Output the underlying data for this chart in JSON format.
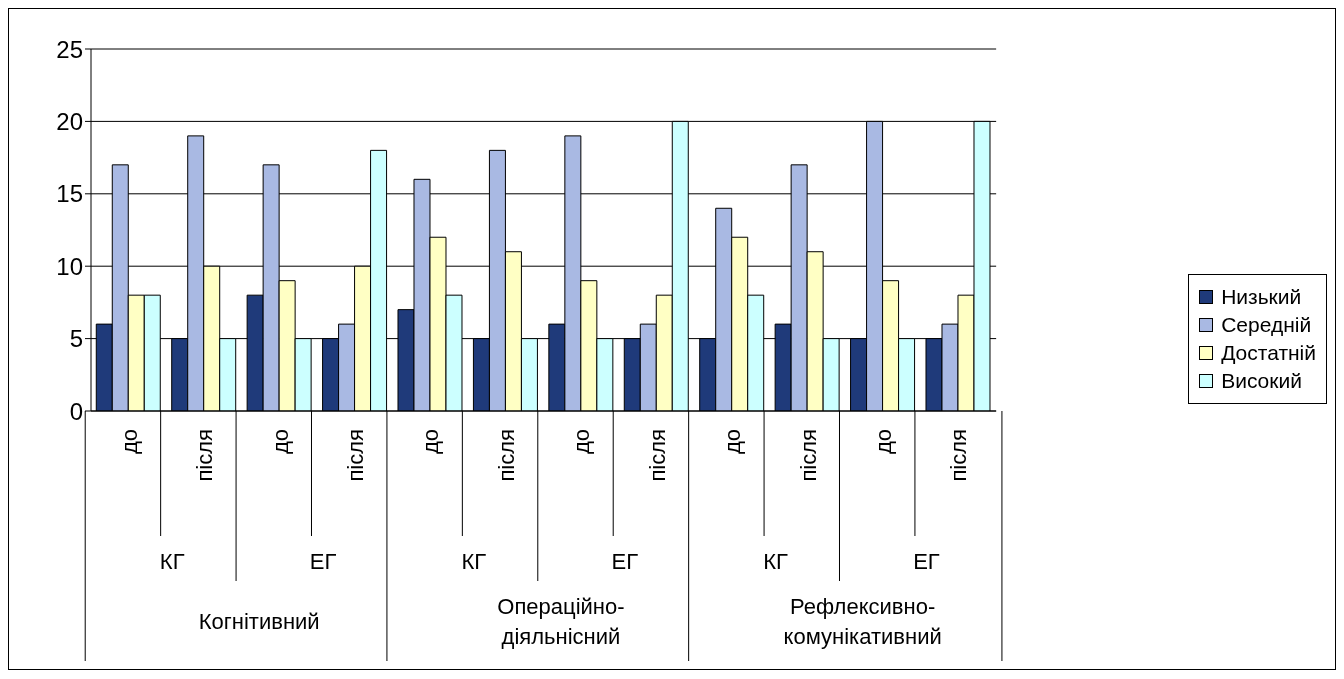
{
  "chart_data": {
    "type": "bar",
    "categories": [
      "до",
      "після",
      "до",
      "після",
      "до",
      "після",
      "до",
      "після",
      "до",
      "після",
      "до",
      "після"
    ],
    "series": [
      {
        "name": "Низький",
        "color": "#1f3a7a",
        "values": [
          6,
          5,
          8,
          5,
          7,
          5,
          6,
          5,
          5,
          6,
          5,
          5
        ]
      },
      {
        "name": "Середній",
        "color": "#a9b9e3",
        "values": [
          17,
          19,
          17,
          6,
          16,
          18,
          19,
          6,
          14,
          17,
          20,
          6
        ]
      },
      {
        "name": "Достатній",
        "color": "#ffffc4",
        "values": [
          8,
          10,
          9,
          10,
          12,
          11,
          9,
          8,
          12,
          11,
          9,
          8
        ]
      },
      {
        "name": "Високий",
        "color": "#ccffff",
        "values": [
          8,
          5,
          5,
          18,
          8,
          5,
          5,
          20,
          8,
          5,
          5,
          20
        ]
      }
    ],
    "annotations": [
      "КГ",
      "ЕГ",
      "КГ",
      "ЕГ",
      "КГ",
      "ЕГ",
      "Когнітивний",
      "Операційно-діяльнісний",
      "Рефлексивно-комунікативний"
    ],
    "ylim": [
      0,
      25
    ],
    "yticks": [
      0,
      5,
      10,
      15,
      20,
      25
    ],
    "grid": "y",
    "legend": "right"
  }
}
